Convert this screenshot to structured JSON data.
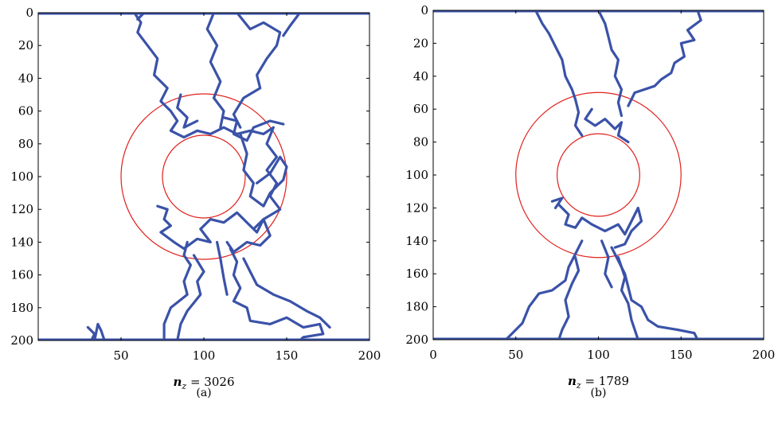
{
  "chart_data": [
    {
      "type": "scatter",
      "caption": "(a)",
      "xlabel_var": "n",
      "xlabel_sub": "z",
      "xlabel_value": " = 3026",
      "xlim": [
        0,
        200
      ],
      "ylim": [
        0,
        200
      ],
      "y_inverted": true,
      "xticks": [
        50,
        100,
        150,
        200
      ],
      "yticks": [
        0,
        20,
        40,
        60,
        80,
        100,
        120,
        140,
        160,
        180,
        200
      ],
      "circles": [
        {
          "cx": 100,
          "cy": 100,
          "r": 50,
          "color": "#e0201c"
        },
        {
          "cx": 100,
          "cy": 100,
          "r": 25,
          "color": "#e0201c"
        }
      ],
      "series_color": "#3a52a8",
      "paths": [
        [
          [
            58,
            0
          ],
          [
            62,
            6
          ],
          [
            60,
            12
          ],
          [
            66,
            20
          ],
          [
            72,
            28
          ],
          [
            70,
            38
          ],
          [
            78,
            46
          ],
          [
            74,
            54
          ],
          [
            80,
            60
          ],
          [
            84,
            66
          ],
          [
            80,
            72
          ],
          [
            88,
            76
          ],
          [
            96,
            72
          ],
          [
            104,
            74
          ],
          [
            112,
            70
          ],
          [
            120,
            74
          ],
          [
            128,
            72
          ],
          [
            136,
            74
          ],
          [
            142,
            70
          ],
          [
            138,
            80
          ],
          [
            144,
            88
          ],
          [
            138,
            96
          ],
          [
            144,
            104
          ],
          [
            140,
            112
          ],
          [
            146,
            120
          ],
          [
            136,
            126
          ],
          [
            130,
            132
          ]
        ],
        [
          [
            64,
            0
          ],
          [
            60,
            4
          ]
        ],
        [
          [
            106,
            0
          ],
          [
            102,
            10
          ],
          [
            108,
            20
          ],
          [
            104,
            30
          ],
          [
            110,
            42
          ],
          [
            106,
            52
          ],
          [
            112,
            60
          ],
          [
            110,
            70
          ]
        ],
        [
          [
            120,
            0
          ],
          [
            128,
            10
          ],
          [
            136,
            6
          ],
          [
            146,
            12
          ],
          [
            144,
            20
          ],
          [
            138,
            28
          ],
          [
            132,
            38
          ],
          [
            134,
            46
          ],
          [
            124,
            52
          ],
          [
            118,
            62
          ],
          [
            122,
            70
          ]
        ],
        [
          [
            158,
            0
          ],
          [
            152,
            8
          ],
          [
            148,
            14
          ]
        ],
        [
          [
            86,
            50
          ],
          [
            84,
            58
          ],
          [
            90,
            64
          ],
          [
            88,
            70
          ],
          [
            96,
            66
          ]
        ],
        [
          [
            112,
            64
          ],
          [
            120,
            66
          ],
          [
            118,
            74
          ],
          [
            126,
            78
          ],
          [
            130,
            70
          ],
          [
            140,
            66
          ],
          [
            148,
            68
          ]
        ],
        [
          [
            122,
            74
          ],
          [
            126,
            86
          ],
          [
            124,
            96
          ],
          [
            130,
            104
          ],
          [
            128,
            112
          ],
          [
            136,
            118
          ],
          [
            140,
            110
          ],
          [
            148,
            102
          ],
          [
            150,
            94
          ],
          [
            146,
            88
          ],
          [
            140,
            98
          ],
          [
            132,
            104
          ]
        ],
        [
          [
            72,
            118
          ],
          [
            78,
            120
          ],
          [
            76,
            126
          ],
          [
            80,
            130
          ],
          [
            74,
            134
          ],
          [
            82,
            140
          ],
          [
            88,
            144
          ],
          [
            96,
            138
          ],
          [
            104,
            140
          ],
          [
            98,
            132
          ],
          [
            104,
            126
          ],
          [
            112,
            128
          ],
          [
            120,
            122
          ],
          [
            126,
            128
          ],
          [
            132,
            134
          ],
          [
            136,
            126
          ],
          [
            140,
            136
          ],
          [
            134,
            142
          ],
          [
            126,
            140
          ],
          [
            118,
            146
          ],
          [
            114,
            140
          ]
        ],
        [
          [
            90,
            140
          ],
          [
            88,
            148
          ],
          [
            92,
            154
          ],
          [
            88,
            164
          ],
          [
            90,
            172
          ],
          [
            80,
            180
          ],
          [
            76,
            190
          ],
          [
            76,
            200
          ]
        ],
        [
          [
            94,
            148
          ],
          [
            100,
            158
          ],
          [
            96,
            164
          ],
          [
            98,
            172
          ],
          [
            90,
            182
          ],
          [
            86,
            190
          ],
          [
            84,
            200
          ]
        ],
        [
          [
            116,
            144
          ],
          [
            120,
            152
          ],
          [
            118,
            160
          ],
          [
            122,
            168
          ],
          [
            118,
            176
          ],
          [
            126,
            180
          ],
          [
            128,
            188
          ],
          [
            140,
            190
          ],
          [
            150,
            186
          ],
          [
            160,
            192
          ],
          [
            170,
            190
          ],
          [
            172,
            196
          ],
          [
            160,
            198
          ],
          [
            158,
            200
          ]
        ],
        [
          [
            124,
            150
          ],
          [
            128,
            158
          ],
          [
            132,
            166
          ],
          [
            142,
            172
          ],
          [
            152,
            176
          ],
          [
            162,
            182
          ],
          [
            170,
            186
          ],
          [
            176,
            192
          ]
        ],
        [
          [
            108,
            140
          ],
          [
            110,
            150
          ],
          [
            112,
            162
          ],
          [
            114,
            172
          ]
        ],
        [
          [
            30,
            192
          ],
          [
            34,
            196
          ],
          [
            32,
            200
          ],
          [
            40,
            200
          ],
          [
            38,
            194
          ],
          [
            36,
            190
          ],
          [
            34,
            200
          ]
        ]
      ],
      "top_band": 0,
      "bottom_band": 200
    },
    {
      "type": "scatter",
      "caption": "(b)",
      "xlabel_var": "n",
      "xlabel_sub": "z",
      "xlabel_value": " = 1789",
      "xlim": [
        0,
        200
      ],
      "ylim": [
        0,
        200
      ],
      "y_inverted": true,
      "xticks": [
        0,
        50,
        100,
        150,
        200
      ],
      "yticks": [
        0,
        20,
        40,
        60,
        80,
        100,
        120,
        140,
        160,
        180,
        200
      ],
      "circles": [
        {
          "cx": 100,
          "cy": 100,
          "r": 50,
          "color": "#e0201c"
        },
        {
          "cx": 100,
          "cy": 100,
          "r": 25,
          "color": "#e0201c"
        }
      ],
      "series_color": "#3a52a8",
      "paths": [
        [
          [
            62,
            0
          ],
          [
            66,
            8
          ],
          [
            70,
            14
          ],
          [
            74,
            22
          ],
          [
            78,
            30
          ],
          [
            80,
            40
          ],
          [
            84,
            48
          ],
          [
            86,
            54
          ],
          [
            88,
            62
          ],
          [
            86,
            70
          ],
          [
            90,
            76
          ]
        ],
        [
          [
            100,
            0
          ],
          [
            104,
            8
          ],
          [
            106,
            16
          ],
          [
            108,
            24
          ],
          [
            112,
            30
          ],
          [
            110,
            40
          ],
          [
            114,
            48
          ],
          [
            112,
            56
          ],
          [
            114,
            64
          ]
        ],
        [
          [
            160,
            0
          ],
          [
            162,
            6
          ],
          [
            154,
            12
          ],
          [
            158,
            18
          ],
          [
            150,
            20
          ],
          [
            152,
            28
          ],
          [
            146,
            32
          ],
          [
            144,
            38
          ],
          [
            138,
            42
          ],
          [
            134,
            46
          ],
          [
            122,
            50
          ],
          [
            118,
            58
          ]
        ],
        [
          [
            96,
            60
          ],
          [
            92,
            66
          ],
          [
            98,
            70
          ],
          [
            104,
            66
          ],
          [
            110,
            72
          ],
          [
            114,
            68
          ],
          [
            112,
            76
          ],
          [
            118,
            80
          ]
        ],
        [
          [
            76,
            118
          ],
          [
            82,
            124
          ],
          [
            80,
            130
          ],
          [
            86,
            132
          ],
          [
            90,
            126
          ],
          [
            96,
            130
          ],
          [
            104,
            134
          ],
          [
            112,
            130
          ],
          [
            116,
            136
          ],
          [
            120,
            128
          ],
          [
            124,
            120
          ],
          [
            126,
            128
          ],
          [
            120,
            134
          ],
          [
            116,
            142
          ],
          [
            110,
            144
          ]
        ],
        [
          [
            74,
            120
          ],
          [
            78,
            114
          ],
          [
            72,
            116
          ]
        ],
        [
          [
            90,
            140
          ],
          [
            86,
            148
          ],
          [
            82,
            156
          ],
          [
            80,
            164
          ],
          [
            72,
            170
          ],
          [
            64,
            172
          ],
          [
            58,
            180
          ],
          [
            54,
            190
          ],
          [
            48,
            196
          ],
          [
            44,
            200
          ]
        ],
        [
          [
            86,
            150
          ],
          [
            88,
            158
          ],
          [
            84,
            166
          ],
          [
            80,
            176
          ],
          [
            82,
            186
          ],
          [
            78,
            194
          ],
          [
            76,
            200
          ]
        ],
        [
          [
            108,
            144
          ],
          [
            112,
            152
          ],
          [
            116,
            160
          ],
          [
            118,
            168
          ],
          [
            120,
            176
          ],
          [
            126,
            180
          ],
          [
            130,
            188
          ],
          [
            136,
            192
          ],
          [
            148,
            194
          ],
          [
            158,
            196
          ],
          [
            160,
            200
          ]
        ],
        [
          [
            112,
            150
          ],
          [
            116,
            162
          ],
          [
            114,
            170
          ],
          [
            118,
            178
          ],
          [
            120,
            188
          ],
          [
            124,
            200
          ]
        ],
        [
          [
            102,
            140
          ],
          [
            106,
            150
          ],
          [
            104,
            160
          ],
          [
            108,
            168
          ]
        ]
      ],
      "top_band": 0,
      "bottom_band": 200
    }
  ]
}
